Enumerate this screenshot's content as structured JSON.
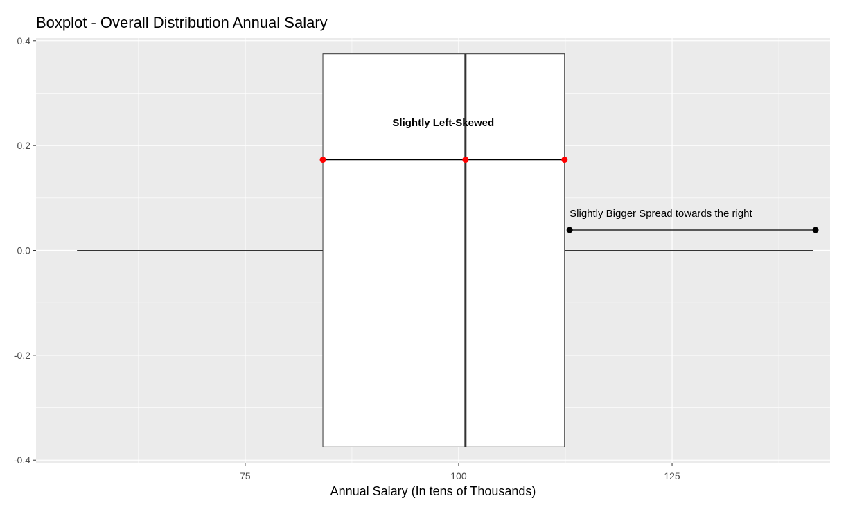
{
  "chart_data": {
    "type": "boxplot",
    "title": "Boxplot - Overall Distribution Annual Salary",
    "xlabel": "Annual Salary (In tens of Thousands)",
    "ylabel": "",
    "xlim": [
      50.5,
      143.5
    ],
    "ylim": [
      -0.405,
      0.405
    ],
    "x_ticks": [
      75,
      100,
      125
    ],
    "y_ticks": [
      0.4,
      0.2,
      0.0,
      -0.2,
      -0.4
    ],
    "y_tick_labels": [
      "0.4",
      "0.2",
      "0.0",
      "-0.2",
      "-0.4"
    ],
    "grid": true,
    "box": {
      "whisker_low": 55.3,
      "q1": 84.1,
      "median": 100.8,
      "q3": 112.4,
      "whisker_high": 141.5,
      "y_center": 0.0,
      "half_width": 0.375
    },
    "annotations": [
      {
        "text": "Slightly Left-Skewed",
        "x": 98.2,
        "y": 0.237,
        "bold": true,
        "line": {
          "y": 0.173,
          "points": [
            84.1,
            100.8,
            112.4
          ],
          "color": "#ff0000"
        }
      },
      {
        "text": "Slightly Bigger Spread towards the right",
        "x": 113.0,
        "y": 0.064,
        "bold": false,
        "line": {
          "y": 0.039,
          "points": [
            113.0,
            141.8
          ],
          "color": "#000000"
        }
      }
    ],
    "colors": {
      "panel_background": "#ebebeb",
      "grid_major": "#ffffff",
      "box_fill": "#ffffff",
      "box_stroke": "#333333",
      "median_line": "#333333",
      "axis_text": "#4d4d4d",
      "annotation_red": "#ff0000",
      "annotation_black": "#000000"
    }
  }
}
